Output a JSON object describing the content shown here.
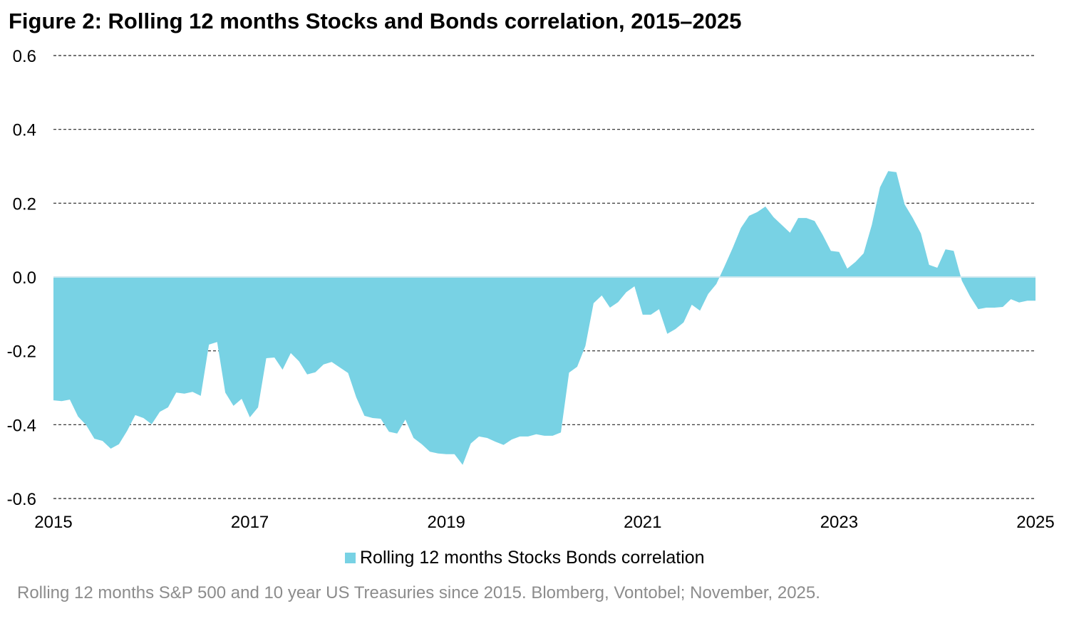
{
  "chart_data": {
    "type": "area",
    "title": "Figure 2: Rolling 12 months Stocks and Bonds correlation, 2015–2025",
    "xlabel": "",
    "ylabel": "",
    "ylim": [
      -0.6,
      0.6
    ],
    "yticks": [
      "0.6",
      "0.4",
      "0.2",
      "0.0",
      "-0.2",
      "-0.4",
      "-0.6"
    ],
    "xlim": [
      "2015-01",
      "2025-01"
    ],
    "xticks": [
      "2015",
      "2017",
      "2019",
      "2021",
      "2023",
      "2025"
    ],
    "grid": "horizontal dashed",
    "legend_position": "bottom",
    "series": [
      {
        "name": "Rolling 12 months Stocks Bonds correlation",
        "color": "#78d2e4",
        "x": [
          "2015-01",
          "2015-02",
          "2015-03",
          "2015-04",
          "2015-05",
          "2015-06",
          "2015-07",
          "2015-08",
          "2015-09",
          "2015-10",
          "2015-11",
          "2015-12",
          "2016-01",
          "2016-02",
          "2016-03",
          "2016-04",
          "2016-05",
          "2016-06",
          "2016-07",
          "2016-08",
          "2016-09",
          "2016-10",
          "2016-11",
          "2016-12",
          "2017-01",
          "2017-02",
          "2017-03",
          "2017-04",
          "2017-05",
          "2017-06",
          "2017-07",
          "2017-08",
          "2017-09",
          "2017-10",
          "2017-11",
          "2017-12",
          "2018-01",
          "2018-02",
          "2018-03",
          "2018-04",
          "2018-05",
          "2018-06",
          "2018-07",
          "2018-08",
          "2018-09",
          "2018-10",
          "2018-11",
          "2018-12",
          "2019-01",
          "2019-02",
          "2019-03",
          "2019-04",
          "2019-05",
          "2019-06",
          "2019-07",
          "2019-08",
          "2019-09",
          "2019-10",
          "2019-11",
          "2019-12",
          "2020-01",
          "2020-02",
          "2020-03",
          "2020-04",
          "2020-05",
          "2020-06",
          "2020-07",
          "2020-08",
          "2020-09",
          "2020-10",
          "2020-11",
          "2020-12",
          "2021-01",
          "2021-02",
          "2021-03",
          "2021-04",
          "2021-05",
          "2021-06",
          "2021-07",
          "2021-08",
          "2021-09",
          "2021-10",
          "2021-11",
          "2021-12",
          "2022-01",
          "2022-02",
          "2022-03",
          "2022-04",
          "2022-05",
          "2022-06",
          "2022-07",
          "2022-08",
          "2022-09",
          "2022-10",
          "2022-11",
          "2022-12",
          "2023-01",
          "2023-02",
          "2023-03",
          "2023-04",
          "2023-05",
          "2023-06",
          "2023-07",
          "2023-08",
          "2023-09",
          "2023-10",
          "2023-11",
          "2023-12",
          "2024-01",
          "2024-02",
          "2024-03",
          "2024-04",
          "2024-05",
          "2024-06",
          "2024-07",
          "2024-08",
          "2024-09",
          "2024-10",
          "2024-11",
          "2024-12",
          "2025-01"
        ],
        "values": [
          -0.334,
          -0.336,
          -0.332,
          -0.378,
          -0.401,
          -0.438,
          -0.444,
          -0.465,
          -0.453,
          -0.417,
          -0.374,
          -0.382,
          -0.399,
          -0.365,
          -0.353,
          -0.313,
          -0.316,
          -0.311,
          -0.322,
          -0.183,
          -0.176,
          -0.313,
          -0.349,
          -0.33,
          -0.38,
          -0.353,
          -0.22,
          -0.218,
          -0.251,
          -0.206,
          -0.228,
          -0.264,
          -0.258,
          -0.237,
          -0.23,
          -0.245,
          -0.26,
          -0.326,
          -0.376,
          -0.382,
          -0.384,
          -0.419,
          -0.424,
          -0.386,
          -0.436,
          -0.453,
          -0.473,
          -0.478,
          -0.48,
          -0.48,
          -0.509,
          -0.451,
          -0.432,
          -0.436,
          -0.446,
          -0.455,
          -0.44,
          -0.432,
          -0.432,
          -0.426,
          -0.43,
          -0.43,
          -0.421,
          -0.259,
          -0.243,
          -0.187,
          -0.071,
          -0.05,
          -0.083,
          -0.068,
          -0.041,
          -0.025,
          -0.102,
          -0.102,
          -0.087,
          -0.154,
          -0.141,
          -0.123,
          -0.075,
          -0.091,
          -0.046,
          -0.019,
          0.029,
          0.079,
          0.133,
          0.166,
          0.176,
          0.191,
          0.162,
          0.141,
          0.12,
          0.16,
          0.16,
          0.152,
          0.114,
          0.071,
          0.068,
          0.023,
          0.041,
          0.064,
          0.141,
          0.243,
          0.287,
          0.284,
          0.197,
          0.16,
          0.118,
          0.033,
          0.025,
          0.075,
          0.071,
          -0.01,
          -0.052,
          -0.087,
          -0.083,
          -0.083,
          -0.081,
          -0.06,
          -0.069,
          -0.064,
          -0.064
        ]
      }
    ],
    "source_note": "Rolling 12 months S&P 500 and 10 year US Treasuries since 2015. Blomberg, Vontobel; November, 2025."
  }
}
